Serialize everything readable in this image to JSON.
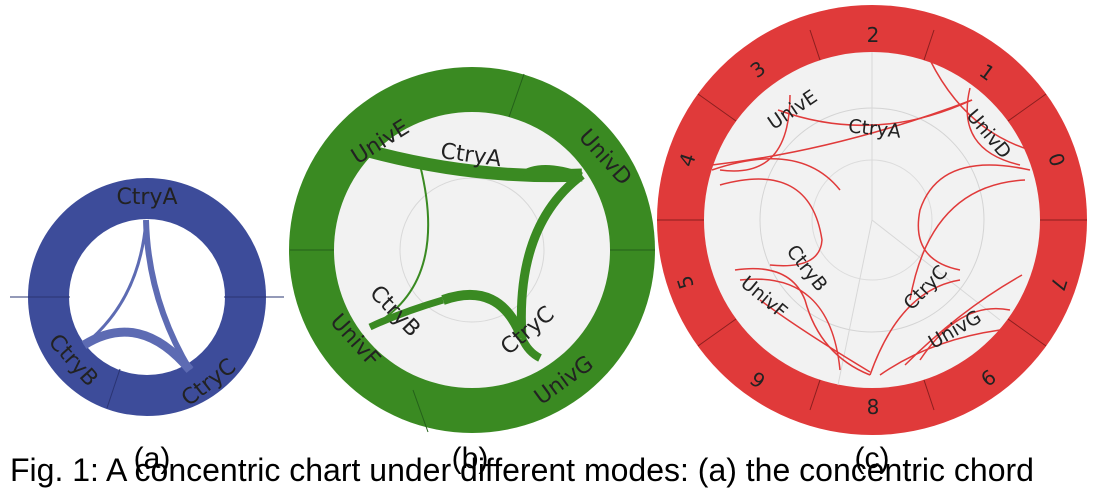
{
  "panels": [
    {
      "id": "a",
      "label": "(a)",
      "ring_color": "#3d4c9a",
      "edge_color": "#5d6bb3",
      "segments": [
        "CtryA",
        "CtryC",
        "CtryB"
      ],
      "ticks": []
    },
    {
      "id": "b",
      "label": "(b)",
      "ring_color": "#3a8a22",
      "edge_color": "#3a8a22",
      "segments": [
        "UnivE",
        "CtryA",
        "UnivD",
        "CtryC",
        "UnivG",
        "UnivF",
        "CtryB"
      ],
      "ticks": []
    },
    {
      "id": "c",
      "label": "(c)",
      "ring_color": "#e03a3a",
      "edge_color": "#e03a3a",
      "segments": [
        "UnivE",
        "CtryA",
        "UnivD",
        "CtryC",
        "UnivG",
        "UnivF",
        "CtryB"
      ],
      "ticks": [
        "2",
        "1",
        "0",
        "7",
        "9",
        "8",
        "6",
        "5",
        "4",
        "3"
      ]
    }
  ],
  "caption": "Fig. 1: A concentric chart under different modes: (a) the concentric chord"
}
